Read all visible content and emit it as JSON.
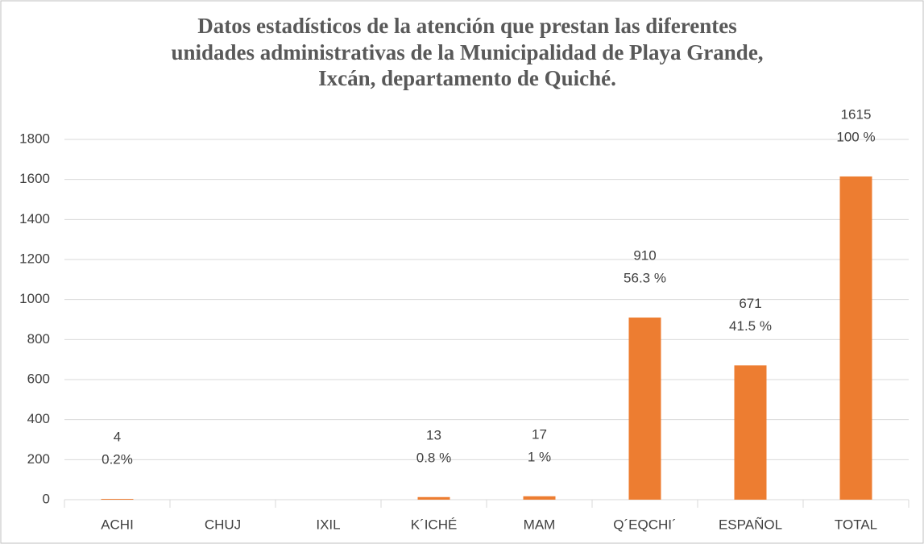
{
  "chart_data": {
    "type": "bar",
    "title": [
      "Datos estadísticos de la atención que prestan las diferentes",
      "unidades administrativas de la Municipalidad de Playa Grande,",
      "Ixcán, departamento de Quiché."
    ],
    "categories": [
      "ACHI",
      "CHUJ",
      "IXIL",
      "K´ICHÉ",
      "MAM",
      "Q´EQCHI´",
      "ESPAÑOL",
      "TOTAL"
    ],
    "values": [
      4,
      null,
      null,
      13,
      17,
      910,
      671,
      1615
    ],
    "percent_labels": [
      "0.2%",
      null,
      null,
      "0.8 %",
      "1 %",
      "56.3 %",
      "41.5 %",
      "100 %"
    ],
    "color": "#ed7d31",
    "ylim": [
      0,
      1800
    ],
    "yticks": [
      0,
      200,
      400,
      600,
      800,
      1000,
      1200,
      1400,
      1600,
      1800
    ],
    "grid": true
  }
}
